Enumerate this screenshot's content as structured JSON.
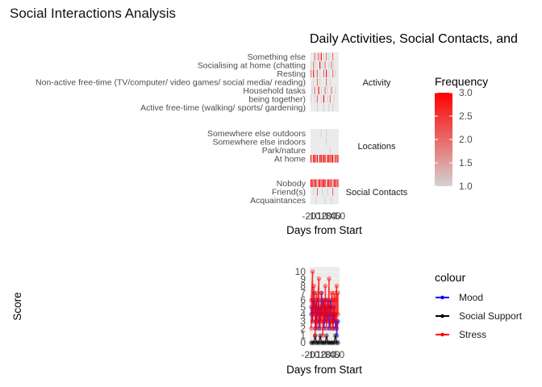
{
  "page_title": "Social Interactions Analysis",
  "chart_data": [
    {
      "type": "heatmap",
      "title": "Daily Activities, Social Contacts, and",
      "xlabel": "Days from Start",
      "x_tick_labels": [
        "-20",
        "-10",
        "0",
        "10",
        "20",
        "30",
        "40",
        "50"
      ],
      "days": 22,
      "color_scale": {
        "low": "#d3d3d3",
        "high": "#ff0000",
        "min": 1,
        "max": 3
      },
      "legend": {
        "title": "Frequency",
        "ticks": [
          "3.0",
          "2.5",
          "2.0",
          "1.5",
          "1.0"
        ],
        "tick_values": [
          3.0,
          2.5,
          2.0,
          1.5,
          1.0
        ],
        "position": "right"
      },
      "panels": [
        {
          "strip": "Activity",
          "rows": [
            {
              "label": "Something else",
              "values": [
                0,
                0,
                0,
                2,
                0,
                1,
                2,
                0,
                3,
                0,
                1,
                0,
                2,
                0,
                1,
                0,
                0,
                2,
                0,
                0,
                0,
                0
              ]
            },
            {
              "label": "Socialising at home (chatting",
              "values": [
                1,
                0,
                2,
                0,
                1,
                0,
                0,
                3,
                0,
                1,
                0,
                2,
                0,
                0,
                1,
                0,
                2,
                0,
                1,
                0,
                0,
                0
              ]
            },
            {
              "label": "Resting",
              "values": [
                2,
                0,
                3,
                0,
                1,
                2,
                0,
                1,
                0,
                0,
                2,
                0,
                3,
                0,
                1,
                0,
                0,
                2,
                0,
                1,
                0,
                0
              ]
            },
            {
              "label": "Non-active free-time (TV/computer/ video games/ social media/ reading)",
              "values": [
                0,
                0,
                1,
                0,
                0,
                2,
                0,
                1,
                0,
                0,
                0,
                0,
                2,
                0,
                0,
                1,
                0,
                0,
                0,
                0,
                0,
                0
              ]
            },
            {
              "label": "Household tasks",
              "values": [
                0,
                1,
                0,
                2,
                0,
                0,
                3,
                0,
                1,
                0,
                0,
                2,
                0,
                1,
                0,
                0,
                2,
                0,
                0,
                1,
                0,
                0
              ]
            },
            {
              "label": "being together)",
              "values": [
                1,
                0,
                0,
                1,
                0,
                2,
                0,
                0,
                1,
                0,
                3,
                0,
                0,
                1,
                0,
                2,
                0,
                0,
                1,
                0,
                0,
                0
              ]
            },
            {
              "label": "Active free-time (walking/ sports/ gardening)",
              "values": [
                0,
                0,
                0,
                0,
                0,
                1,
                0,
                0,
                0,
                0,
                1,
                0,
                0,
                0,
                1,
                0,
                0,
                1,
                0,
                0,
                0,
                0
              ]
            }
          ]
        },
        {
          "strip": "Locations",
          "rows": [
            {
              "label": "Somewhere else outdoors",
              "values": [
                0,
                0,
                0,
                0,
                0,
                0,
                0,
                0,
                1,
                0,
                0,
                0,
                1,
                0,
                0,
                0,
                0,
                0,
                0,
                0,
                0,
                0
              ]
            },
            {
              "label": "Somewhere else indoors",
              "values": [
                0,
                0,
                0,
                0,
                0,
                0,
                0,
                0,
                0,
                0,
                0,
                0,
                1,
                0,
                0,
                0,
                0,
                0,
                0,
                0,
                0,
                0
              ]
            },
            {
              "label": "Park/nature",
              "values": [
                0,
                0,
                0,
                0,
                0,
                0,
                0,
                0,
                0,
                0,
                0,
                0,
                0,
                0,
                0,
                1,
                0,
                0,
                0,
                0,
                0,
                0
              ]
            },
            {
              "label": "At home",
              "values": [
                3,
                1,
                3,
                3,
                2,
                3,
                1,
                3,
                3,
                2,
                3,
                3,
                1,
                3,
                3,
                2,
                3,
                3,
                1,
                3,
                2,
                3
              ]
            }
          ]
        },
        {
          "strip": "Social Contacts",
          "rows": [
            {
              "label": "Nobody",
              "values": [
                3,
                3,
                2,
                3,
                3,
                1,
                3,
                3,
                2,
                3,
                3,
                3,
                1,
                3,
                3,
                2,
                3,
                1,
                3,
                3,
                2,
                3
              ]
            },
            {
              "label": "Friend(s)",
              "values": [
                0,
                0,
                1,
                0,
                0,
                2,
                0,
                0,
                0,
                1,
                0,
                0,
                0,
                1,
                0,
                0,
                0,
                2,
                0,
                0,
                0,
                0
              ]
            },
            {
              "label": "Acquaintances",
              "values": [
                0,
                0,
                0,
                0,
                1,
                0,
                0,
                0,
                0,
                0,
                0,
                1,
                0,
                0,
                0,
                0,
                1,
                0,
                0,
                0,
                0,
                0
              ]
            }
          ]
        }
      ]
    },
    {
      "type": "scatter",
      "xlabel": "Days from Start",
      "ylabel": "Score",
      "x_tick_labels": [
        "-20",
        "-10",
        "0",
        "10",
        "20",
        "30",
        "40",
        "50"
      ],
      "xlim": [
        0,
        21
      ],
      "ylim": [
        0,
        10
      ],
      "y_ticks": [
        0,
        1,
        2,
        3,
        4,
        5,
        6,
        7,
        8,
        9,
        10
      ],
      "legend": {
        "title": "colour",
        "position": "right"
      },
      "series": [
        {
          "name": "Mood",
          "color": "#0000ff",
          "points": [
            [
              0,
              4
            ],
            [
              0,
              5
            ],
            [
              1,
              3
            ],
            [
              1,
              6
            ],
            [
              2,
              4
            ],
            [
              2,
              7
            ],
            [
              3,
              5
            ],
            [
              3,
              2
            ],
            [
              4,
              6
            ],
            [
              4,
              3
            ],
            [
              5,
              5
            ],
            [
              5,
              4
            ],
            [
              6,
              6
            ],
            [
              6,
              2
            ],
            [
              7,
              5
            ],
            [
              7,
              3
            ],
            [
              8,
              7
            ],
            [
              8,
              4
            ],
            [
              9,
              4
            ],
            [
              9,
              6
            ],
            [
              10,
              5
            ],
            [
              10,
              2
            ],
            [
              11,
              6
            ],
            [
              11,
              3
            ],
            [
              12,
              5
            ],
            [
              12,
              4
            ],
            [
              13,
              3
            ],
            [
              13,
              6
            ],
            [
              14,
              5
            ],
            [
              14,
              2
            ],
            [
              15,
              4
            ],
            [
              15,
              6
            ],
            [
              16,
              5
            ],
            [
              16,
              3
            ],
            [
              17,
              4
            ],
            [
              17,
              2
            ],
            [
              18,
              5
            ],
            [
              18,
              3
            ],
            [
              19,
              4
            ],
            [
              19,
              2
            ],
            [
              20,
              3
            ],
            [
              20,
              1
            ],
            [
              21,
              3
            ]
          ]
        },
        {
          "name": "Social Support",
          "color": "#000000",
          "points": [
            [
              0,
              0
            ],
            [
              1,
              0
            ],
            [
              2,
              0
            ],
            [
              3,
              1
            ],
            [
              4,
              0
            ],
            [
              5,
              0
            ],
            [
              6,
              0
            ],
            [
              7,
              1
            ],
            [
              8,
              0
            ],
            [
              9,
              0
            ],
            [
              10,
              0
            ],
            [
              11,
              0
            ],
            [
              12,
              1
            ],
            [
              13,
              0
            ],
            [
              14,
              0
            ],
            [
              15,
              0
            ],
            [
              16,
              0
            ],
            [
              17,
              0
            ],
            [
              18,
              0
            ],
            [
              19,
              1
            ],
            [
              20,
              0
            ],
            [
              21,
              0
            ]
          ]
        },
        {
          "name": "Stress",
          "color": "#ff0000",
          "points": [
            [
              0,
              2
            ],
            [
              0,
              6
            ],
            [
              1,
              10
            ],
            [
              1,
              3
            ],
            [
              2,
              5
            ],
            [
              2,
              8
            ],
            [
              3,
              4
            ],
            [
              3,
              1
            ],
            [
              4,
              7
            ],
            [
              4,
              2
            ],
            [
              5,
              3
            ],
            [
              5,
              6
            ],
            [
              6,
              9
            ],
            [
              6,
              4
            ],
            [
              7,
              2
            ],
            [
              7,
              5
            ],
            [
              8,
              3
            ],
            [
              8,
              7
            ],
            [
              9,
              5
            ],
            [
              9,
              1
            ],
            [
              10,
              6
            ],
            [
              10,
              3
            ],
            [
              11,
              4
            ],
            [
              11,
              8
            ],
            [
              12,
              2
            ],
            [
              12,
              5
            ],
            [
              13,
              6
            ],
            [
              13,
              3
            ],
            [
              14,
              9
            ],
            [
              14,
              4
            ],
            [
              15,
              5
            ],
            [
              15,
              2
            ],
            [
              16,
              3
            ],
            [
              16,
              7
            ],
            [
              17,
              6
            ],
            [
              17,
              2
            ],
            [
              18,
              4
            ],
            [
              18,
              7
            ],
            [
              19,
              3
            ],
            [
              19,
              6
            ],
            [
              20,
              8
            ],
            [
              20,
              2
            ],
            [
              21,
              7
            ],
            [
              21,
              4
            ]
          ]
        }
      ]
    }
  ]
}
